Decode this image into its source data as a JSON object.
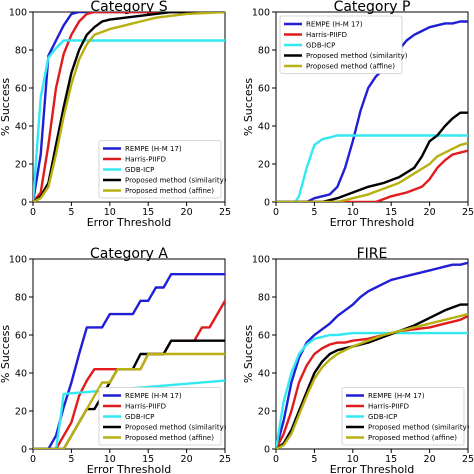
{
  "chart_data": [
    {
      "type": "line",
      "title": "Category S",
      "xlabel": "Error Threshold",
      "ylabel": "% Success",
      "xlim": [
        0,
        25
      ],
      "ylim": [
        0,
        100
      ],
      "xticks": [
        0,
        5,
        10,
        15,
        20,
        25
      ],
      "yticks": [
        0,
        20,
        40,
        60,
        80,
        100
      ],
      "legend_position": "lower-right",
      "series": [
        {
          "name": "REMPE (H-M 17)",
          "color": "#1f1fd6",
          "x": [
            0,
            1,
            2,
            3,
            4,
            5,
            6,
            25
          ],
          "y": [
            0,
            25,
            77,
            85,
            93,
            99,
            100,
            100
          ]
        },
        {
          "name": "Harris-PIIFD",
          "color": "#e01b1b",
          "x": [
            0,
            1,
            2,
            3,
            4,
            5,
            6,
            7,
            8,
            25
          ],
          "y": [
            0,
            5,
            30,
            60,
            78,
            88,
            95,
            99,
            100,
            100
          ]
        },
        {
          "name": "GDB-ICP",
          "color": "#33e8f0",
          "x": [
            0,
            1,
            2,
            3,
            4,
            25
          ],
          "y": [
            0,
            55,
            76,
            81,
            85,
            85
          ]
        },
        {
          "name": "Proposed method (similarity)",
          "color": "#000000",
          "x": [
            0,
            1,
            2,
            3,
            4,
            5,
            6,
            7,
            8,
            9,
            10,
            12,
            14,
            16,
            18,
            20,
            25
          ],
          "y": [
            0,
            3,
            10,
            30,
            50,
            68,
            80,
            88,
            92,
            95,
            96,
            97,
            98,
            99,
            100,
            100,
            100
          ]
        },
        {
          "name": "Proposed method (affine)",
          "color": "#b8b010",
          "x": [
            0,
            1,
            2,
            3,
            4,
            5,
            6,
            7,
            8,
            10,
            12,
            14,
            16,
            20,
            25
          ],
          "y": [
            0,
            2,
            8,
            25,
            45,
            62,
            75,
            83,
            88,
            91,
            93,
            95,
            97,
            99,
            100
          ]
        }
      ]
    },
    {
      "type": "line",
      "title": "Category P",
      "xlabel": "Error Threshold",
      "ylabel": "% Success",
      "xlim": [
        0,
        25
      ],
      "ylim": [
        0,
        100
      ],
      "xticks": [
        0,
        5,
        10,
        15,
        20,
        25
      ],
      "yticks": [
        0,
        20,
        40,
        60,
        80,
        100
      ],
      "legend_position": "upper-left",
      "series": [
        {
          "name": "REMPE (H-M 17)",
          "color": "#1f1fd6",
          "x": [
            0,
            4,
            5,
            6,
            7,
            8,
            9,
            10,
            11,
            12,
            13,
            14,
            15,
            16,
            17,
            18,
            19,
            20,
            21,
            22,
            23,
            24,
            25
          ],
          "y": [
            0,
            0,
            2,
            3,
            4,
            8,
            18,
            32,
            48,
            60,
            66,
            70,
            76,
            80,
            85,
            88,
            90,
            92,
            93,
            94,
            94,
            95,
            95
          ]
        },
        {
          "name": "Harris-PIIFD",
          "color": "#e01b1b",
          "x": [
            0,
            13,
            15,
            17,
            19,
            20,
            21,
            22,
            23,
            24,
            25
          ],
          "y": [
            0,
            0,
            3,
            5,
            8,
            12,
            18,
            22,
            25,
            26,
            27
          ]
        },
        {
          "name": "GDB-ICP",
          "color": "#33e8f0",
          "x": [
            0,
            2.5,
            3,
            4,
            5,
            6,
            7,
            8,
            25
          ],
          "y": [
            0,
            0,
            3,
            18,
            30,
            33,
            34,
            35,
            35
          ]
        },
        {
          "name": "Proposed method (similarity)",
          "color": "#000000",
          "x": [
            0,
            6,
            8,
            10,
            12,
            14,
            16,
            18,
            19,
            20,
            21,
            22,
            23,
            24,
            25
          ],
          "y": [
            0,
            0,
            2,
            5,
            8,
            10,
            13,
            18,
            24,
            32,
            35,
            40,
            44,
            47,
            47
          ]
        },
        {
          "name": "Proposed method (affine)",
          "color": "#b8b010",
          "x": [
            0,
            8,
            10,
            12,
            14,
            16,
            18,
            20,
            21,
            22,
            23,
            24,
            25
          ],
          "y": [
            0,
            0,
            2,
            4,
            7,
            10,
            15,
            20,
            24,
            26,
            28,
            30,
            31
          ]
        }
      ]
    },
    {
      "type": "line",
      "title": "Category A",
      "xlabel": "Error Threshold",
      "ylabel": "% Success",
      "xlim": [
        0,
        25
      ],
      "ylim": [
        0,
        100
      ],
      "xticks": [
        0,
        5,
        10,
        15,
        20,
        25
      ],
      "yticks": [
        0,
        20,
        40,
        60,
        80,
        100
      ],
      "legend_position": "lower-right",
      "series": [
        {
          "name": "REMPE (H-M 17)",
          "color": "#1f1fd6",
          "x": [
            0,
            2,
            3,
            4,
            5,
            6,
            7,
            8,
            9,
            10,
            11,
            12,
            13,
            14,
            15,
            16,
            17,
            18,
            19,
            20,
            25
          ],
          "y": [
            0,
            0,
            7,
            22,
            35,
            50,
            64,
            64,
            64,
            71,
            71,
            71,
            71,
            78,
            78,
            85,
            85,
            92,
            92,
            92,
            92
          ]
        },
        {
          "name": "Harris-PIIFD",
          "color": "#e01b1b",
          "x": [
            0,
            3,
            4,
            5,
            6,
            7,
            8,
            9,
            10,
            11,
            12,
            13,
            14,
            15,
            16,
            17,
            18,
            19,
            20,
            21,
            22,
            23,
            24,
            25
          ],
          "y": [
            0,
            0,
            7,
            14,
            28,
            36,
            42,
            42,
            42,
            42,
            42,
            42,
            42,
            50,
            50,
            50,
            57,
            57,
            57,
            57,
            64,
            64,
            71,
            78
          ]
        },
        {
          "name": "GDB-ICP",
          "color": "#33e8f0",
          "x": [
            0,
            3,
            3.5,
            4,
            25
          ],
          "y": [
            0,
            0,
            14,
            29,
            36
          ]
        },
        {
          "name": "Proposed method (similarity)",
          "color": "#000000",
          "x": [
            0,
            4,
            5,
            6,
            7,
            8,
            9,
            10,
            11,
            12,
            13,
            14,
            15,
            16,
            17,
            18,
            19,
            20,
            25
          ],
          "y": [
            0,
            0,
            7,
            14,
            21,
            21,
            28,
            35,
            42,
            42,
            42,
            50,
            50,
            50,
            50,
            57,
            57,
            57,
            57
          ]
        },
        {
          "name": "Proposed method (affine)",
          "color": "#b8b010",
          "x": [
            0,
            4,
            5,
            6,
            7,
            8,
            9,
            10,
            11,
            12,
            13,
            14,
            15,
            16,
            17,
            18,
            19,
            20,
            25
          ],
          "y": [
            0,
            0,
            7,
            14,
            21,
            28,
            35,
            35,
            42,
            42,
            42,
            42,
            50,
            50,
            50,
            50,
            50,
            50,
            50
          ]
        }
      ]
    },
    {
      "type": "line",
      "title": "FIRE",
      "xlabel": "Error Threshold",
      "ylabel": "% Success",
      "xlim": [
        0,
        25
      ],
      "ylim": [
        0,
        100
      ],
      "xticks": [
        0,
        5,
        10,
        15,
        20,
        25
      ],
      "yticks": [
        0,
        20,
        40,
        60,
        80,
        100
      ],
      "legend_position": "lower-right",
      "series": [
        {
          "name": "REMPE (H-M 17)",
          "color": "#1f1fd6",
          "x": [
            0,
            1,
            2,
            3,
            4,
            5,
            6,
            7,
            8,
            9,
            10,
            11,
            12,
            13,
            14,
            15,
            16,
            17,
            18,
            19,
            20,
            21,
            22,
            23,
            24,
            25
          ],
          "y": [
            0,
            15,
            35,
            48,
            56,
            60,
            63,
            66,
            70,
            73,
            76,
            80,
            83,
            85,
            87,
            89,
            90,
            91,
            92,
            93,
            94,
            95,
            96,
            97,
            97,
            98
          ]
        },
        {
          "name": "Harris-PIIFD",
          "color": "#e01b1b",
          "x": [
            0,
            1,
            2,
            3,
            4,
            5,
            6,
            7,
            8,
            9,
            10,
            12,
            14,
            16,
            18,
            20,
            22,
            24,
            25
          ],
          "y": [
            0,
            8,
            20,
            35,
            44,
            50,
            53,
            55,
            56,
            56,
            57,
            58,
            60,
            62,
            63,
            64,
            66,
            68,
            70
          ]
        },
        {
          "name": "GDB-ICP",
          "color": "#33e8f0",
          "x": [
            0,
            1,
            2,
            3,
            4,
            5,
            6,
            7,
            8,
            10,
            12,
            15,
            20,
            25
          ],
          "y": [
            0,
            25,
            40,
            50,
            55,
            58,
            59,
            60,
            60,
            61,
            61,
            61,
            61,
            61
          ]
        },
        {
          "name": "Proposed method (similarity)",
          "color": "#000000",
          "x": [
            0,
            1,
            2,
            3,
            4,
            5,
            6,
            7,
            8,
            9,
            10,
            12,
            14,
            16,
            18,
            20,
            22,
            24,
            25
          ],
          "y": [
            0,
            3,
            10,
            20,
            30,
            40,
            46,
            50,
            52,
            53,
            54,
            56,
            59,
            62,
            65,
            69,
            73,
            76,
            76
          ]
        },
        {
          "name": "Proposed method (affine)",
          "color": "#b8b010",
          "x": [
            0,
            1,
            2,
            3,
            4,
            5,
            6,
            7,
            8,
            9,
            10,
            12,
            14,
            16,
            18,
            20,
            22,
            24,
            25
          ],
          "y": [
            0,
            2,
            8,
            18,
            28,
            37,
            43,
            47,
            50,
            52,
            54,
            57,
            60,
            62,
            64,
            66,
            68,
            70,
            71
          ]
        }
      ]
    }
  ]
}
